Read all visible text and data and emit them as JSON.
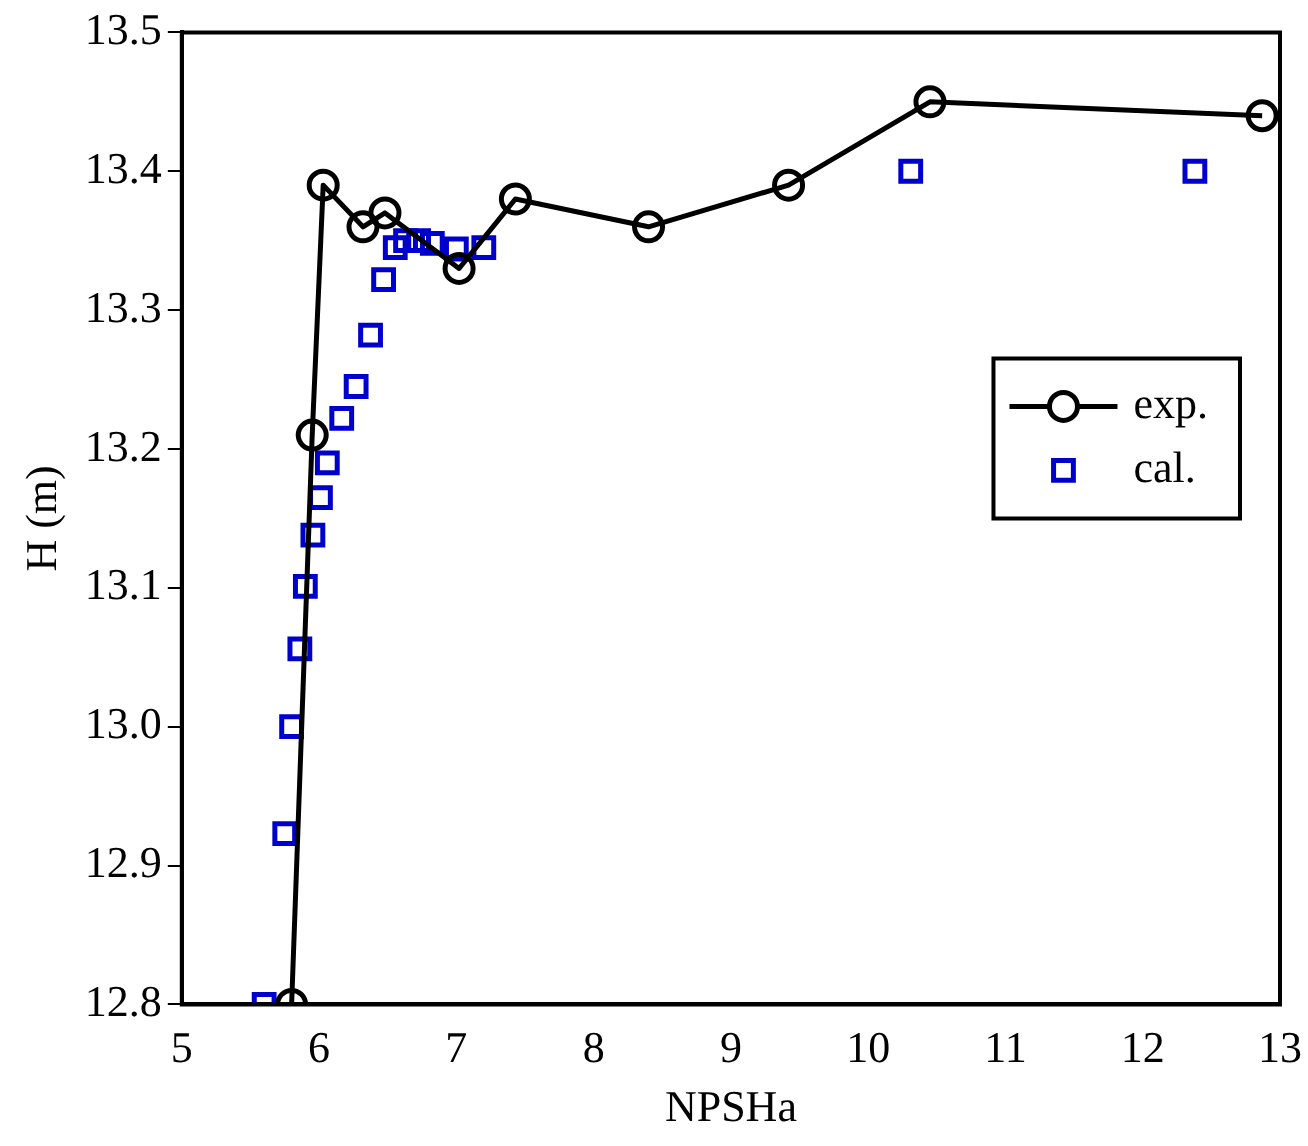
{
  "chart_data": {
    "type": "scatter",
    "xlabel": "NPSHa",
    "ylabel": "H (m)",
    "xlim": [
      5,
      13
    ],
    "xticks": [
      5,
      6,
      7,
      8,
      9,
      10,
      11,
      12,
      13
    ],
    "ylim": [
      12.8,
      13.5
    ],
    "yticks": [
      {
        "value": 12.8,
        "label": "12.8"
      },
      {
        "value": 12.9,
        "label": "12.9"
      },
      {
        "value": 13.0,
        "label": "13.0"
      },
      {
        "value": 13.1,
        "label": "13.1"
      },
      {
        "value": 13.2,
        "label": "13.2"
      },
      {
        "value": 13.3,
        "label": "13.3"
      },
      {
        "value": 13.4,
        "label": "13.4"
      },
      {
        "value": 13.5,
        "label": "13.5"
      }
    ],
    "grid": false,
    "legend": "right",
    "series": [
      {
        "name": "exp.",
        "type": "line",
        "color": "#000000",
        "marker": "circle",
        "line_style": "solid",
        "x": [
          5.8,
          5.95,
          6.03,
          6.32,
          6.48,
          7.02,
          7.43,
          8.4,
          9.42,
          10.45,
          12.87
        ],
        "values": [
          12.8,
          13.21,
          13.39,
          13.36,
          13.37,
          13.33,
          13.38,
          13.36,
          13.39,
          13.45,
          13.44
        ]
      },
      {
        "name": "cal.",
        "type": "scatter",
        "color": "#0000cc",
        "marker": "square",
        "x": [
          5.6,
          5.75,
          5.8,
          5.86,
          5.9,
          5.955,
          6.01,
          6.06,
          6.165,
          6.27,
          6.375,
          6.47,
          6.555,
          6.63,
          6.725,
          6.825,
          7.0,
          7.2,
          10.31,
          12.38
        ],
        "values": [
          12.8,
          12.923,
          13.0,
          13.056,
          13.101,
          13.138,
          13.165,
          13.19,
          13.222,
          13.245,
          13.282,
          13.322,
          13.345,
          13.35,
          13.35,
          13.348,
          13.344,
          13.345,
          13.4,
          13.4
        ]
      }
    ]
  }
}
